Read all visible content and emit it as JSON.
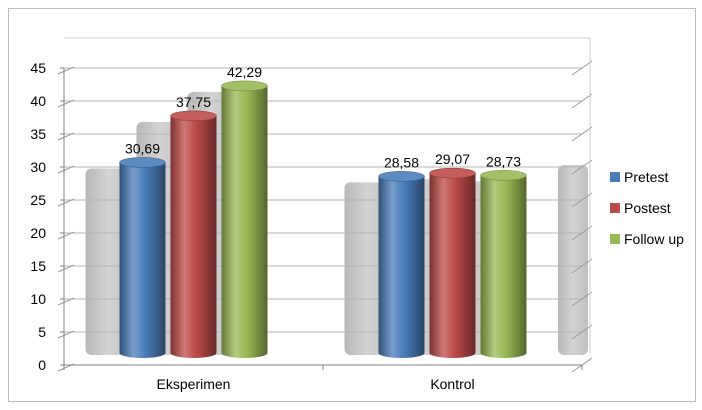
{
  "chart_data": {
    "type": "bar",
    "style": "3d-cylinder",
    "categories": [
      "Eksperimen",
      "Kontrol"
    ],
    "series": [
      {
        "name": "Pretest",
        "values": [
          30.69,
          28.58
        ],
        "labels": [
          "30,69",
          "28,58"
        ],
        "color": "#4a7ebb"
      },
      {
        "name": "Postest",
        "values": [
          37.75,
          29.07
        ],
        "labels": [
          "37,75",
          "29,07"
        ],
        "color": "#be4b48"
      },
      {
        "name": "Follow up",
        "values": [
          42.29,
          28.73
        ],
        "labels": [
          "42,29",
          "28,73"
        ],
        "color": "#98b954"
      }
    ],
    "ylim": [
      0,
      45
    ],
    "yticks": [
      "0",
      "5",
      "10",
      "15",
      "20",
      "25",
      "30",
      "35",
      "40",
      "45"
    ],
    "grid": true,
    "legend": "right",
    "title": "",
    "xlabel": "",
    "ylabel": ""
  }
}
